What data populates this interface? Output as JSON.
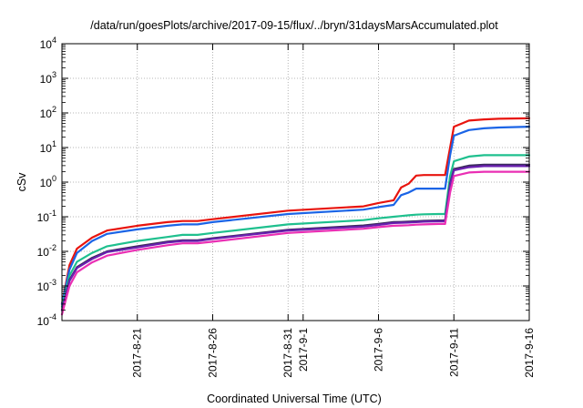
{
  "chart_data": {
    "type": "line",
    "title": "/data/run/goesPlots/archive/2017-09-15/flux/../bryn/31daysMarsAccumulated.plot",
    "xlabel": "Coordinated Universal Time (UTC)",
    "ylabel": "cSv",
    "yscale": "log",
    "ylim": [
      0.0001,
      10000
    ],
    "xlim": [
      "2017-08-16",
      "2017-09-16"
    ],
    "grid": true,
    "legend": "none",
    "y_ticks": [
      {
        "base": "10",
        "exp": "-4",
        "value": 0.0001
      },
      {
        "base": "10",
        "exp": "-3",
        "value": 0.001
      },
      {
        "base": "10",
        "exp": "-2",
        "value": 0.01
      },
      {
        "base": "10",
        "exp": "-1",
        "value": 0.1
      },
      {
        "base": "10",
        "exp": "0",
        "value": 1
      },
      {
        "base": "10",
        "exp": "1",
        "value": 10
      },
      {
        "base": "10",
        "exp": "2",
        "value": 100
      },
      {
        "base": "10",
        "exp": "3",
        "value": 1000
      },
      {
        "base": "10",
        "exp": "4",
        "value": 10000
      }
    ],
    "x_ticks": [
      "2017-8-21",
      "2017-8-26",
      "2017-8-31",
      "2017-9-1",
      "2017-9-6",
      "2017-9-11",
      "2017-9-16"
    ],
    "x_tick_dates": [
      "2017-08-21",
      "2017-08-26",
      "2017-08-31",
      "2017-09-01",
      "2017-09-06",
      "2017-09-11",
      "2017-09-16"
    ],
    "series": [
      {
        "color": "#e8140e",
        "x": [
          "2017-08-16",
          "2017-08-16T12:00",
          "2017-08-17",
          "2017-08-18",
          "2017-08-19",
          "2017-08-21",
          "2017-08-23",
          "2017-08-24",
          "2017-08-25",
          "2017-08-26",
          "2017-08-31",
          "2017-09-05",
          "2017-09-06",
          "2017-09-07",
          "2017-09-07T12:00",
          "2017-09-08",
          "2017-09-08T12:00",
          "2017-09-09",
          "2017-09-10",
          "2017-09-10T10:00",
          "2017-09-10T18:00",
          "2017-09-11",
          "2017-09-12",
          "2017-09-13",
          "2017-09-14",
          "2017-09-16"
        ],
        "y": [
          0.0003,
          0.004,
          0.012,
          0.025,
          0.04,
          0.055,
          0.07,
          0.075,
          0.075,
          0.085,
          0.15,
          0.2,
          0.25,
          0.3,
          0.7,
          0.9,
          1.55,
          1.6,
          1.6,
          1.6,
          10,
          40,
          60,
          65,
          68,
          70
        ]
      },
      {
        "color": "#1b64e6",
        "x": [
          "2017-08-16",
          "2017-08-16T12:00",
          "2017-08-17",
          "2017-08-18",
          "2017-08-19",
          "2017-08-21",
          "2017-08-23",
          "2017-08-24",
          "2017-08-25",
          "2017-08-26",
          "2017-08-31",
          "2017-09-05",
          "2017-09-06",
          "2017-09-07",
          "2017-09-07T12:00",
          "2017-09-08",
          "2017-09-08T12:00",
          "2017-09-09",
          "2017-09-10",
          "2017-09-10T10:00",
          "2017-09-10T18:00",
          "2017-09-11",
          "2017-09-12",
          "2017-09-13",
          "2017-09-14",
          "2017-09-16"
        ],
        "y": [
          0.0003,
          0.003,
          0.009,
          0.02,
          0.032,
          0.043,
          0.055,
          0.06,
          0.06,
          0.07,
          0.12,
          0.16,
          0.19,
          0.22,
          0.42,
          0.5,
          0.65,
          0.65,
          0.65,
          0.65,
          6,
          22,
          32,
          36,
          38,
          40
        ]
      },
      {
        "color": "#1fc08e",
        "x": [
          "2017-08-16",
          "2017-08-16T12:00",
          "2017-08-17",
          "2017-08-18",
          "2017-08-19",
          "2017-08-21",
          "2017-08-23",
          "2017-08-24",
          "2017-08-25",
          "2017-08-26",
          "2017-08-31",
          "2017-09-05",
          "2017-09-06",
          "2017-09-07",
          "2017-09-07T12:00",
          "2017-09-08",
          "2017-09-08T12:00",
          "2017-09-09",
          "2017-09-10",
          "2017-09-10T10:00",
          "2017-09-10T18:00",
          "2017-09-11",
          "2017-09-12",
          "2017-09-13",
          "2017-09-14",
          "2017-09-16"
        ],
        "y": [
          0.00025,
          0.002,
          0.005,
          0.009,
          0.014,
          0.02,
          0.026,
          0.03,
          0.03,
          0.034,
          0.06,
          0.08,
          0.09,
          0.1,
          0.105,
          0.11,
          0.115,
          0.118,
          0.12,
          0.12,
          1.5,
          4,
          5.5,
          6,
          6,
          6
        ]
      },
      {
        "color": "#3a2a5c",
        "x": [
          "2017-08-16",
          "2017-08-16T12:00",
          "2017-08-17",
          "2017-08-18",
          "2017-08-19",
          "2017-08-21",
          "2017-08-23",
          "2017-08-24",
          "2017-08-25",
          "2017-08-26",
          "2017-08-31",
          "2017-09-05",
          "2017-09-06",
          "2017-09-07",
          "2017-09-07T12:00",
          "2017-09-08",
          "2017-09-08T12:00",
          "2017-09-09",
          "2017-09-10",
          "2017-09-10T10:00",
          "2017-09-10T18:00",
          "2017-09-11",
          "2017-09-12",
          "2017-09-13",
          "2017-09-14",
          "2017-09-16"
        ],
        "y": [
          0.0002,
          0.0015,
          0.0035,
          0.0065,
          0.01,
          0.014,
          0.019,
          0.021,
          0.021,
          0.024,
          0.042,
          0.056,
          0.062,
          0.07,
          0.071,
          0.072,
          0.074,
          0.076,
          0.078,
          0.078,
          0.9,
          2.4,
          3,
          3.2,
          3.2,
          3.2
        ]
      },
      {
        "color": "#6a1fb0",
        "x": [
          "2017-08-16",
          "2017-08-16T12:00",
          "2017-08-17",
          "2017-08-18",
          "2017-08-19",
          "2017-08-21",
          "2017-08-23",
          "2017-08-24",
          "2017-08-25",
          "2017-08-26",
          "2017-08-31",
          "2017-09-05",
          "2017-09-06",
          "2017-09-07",
          "2017-09-07T12:00",
          "2017-09-08",
          "2017-09-08T12:00",
          "2017-09-09",
          "2017-09-10",
          "2017-09-10T10:00",
          "2017-09-10T18:00",
          "2017-09-11",
          "2017-09-12",
          "2017-09-13",
          "2017-09-14",
          "2017-09-16"
        ],
        "y": [
          0.0002,
          0.0014,
          0.0033,
          0.006,
          0.0095,
          0.013,
          0.018,
          0.02,
          0.02,
          0.023,
          0.04,
          0.052,
          0.058,
          0.066,
          0.067,
          0.068,
          0.07,
          0.072,
          0.074,
          0.074,
          0.8,
          2.2,
          2.7,
          2.9,
          2.9,
          2.9
        ]
      },
      {
        "color": "#ea2fb4",
        "x": [
          "2017-08-16",
          "2017-08-16T12:00",
          "2017-08-17",
          "2017-08-18",
          "2017-08-19",
          "2017-08-21",
          "2017-08-23",
          "2017-08-24",
          "2017-08-25",
          "2017-08-26",
          "2017-08-31",
          "2017-09-05",
          "2017-09-06",
          "2017-09-07",
          "2017-09-07T12:00",
          "2017-09-08",
          "2017-09-08T12:00",
          "2017-09-09",
          "2017-09-10",
          "2017-09-10T10:00",
          "2017-09-10T18:00",
          "2017-09-11",
          "2017-09-12",
          "2017-09-13",
          "2017-09-14",
          "2017-09-16"
        ],
        "y": [
          0.00015,
          0.001,
          0.0025,
          0.0048,
          0.0075,
          0.011,
          0.015,
          0.017,
          0.017,
          0.019,
          0.034,
          0.045,
          0.05,
          0.055,
          0.056,
          0.057,
          0.059,
          0.06,
          0.062,
          0.062,
          0.5,
          1.5,
          1.9,
          2,
          2,
          2
        ]
      }
    ]
  }
}
